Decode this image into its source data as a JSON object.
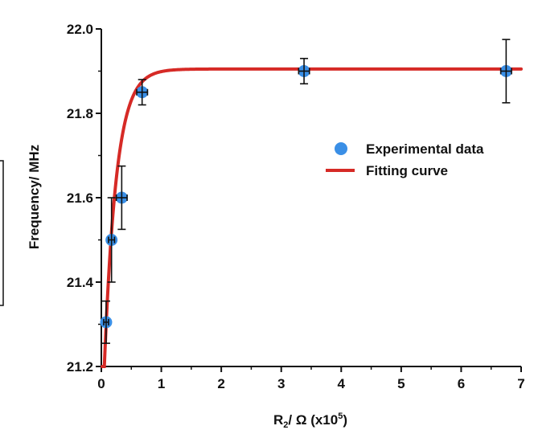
{
  "chart_data": {
    "type": "scatter",
    "title": "",
    "xlabel": {
      "main": "R",
      "sub": "2",
      "rest": "/ Ω (x10",
      "sup": "5",
      "close": ")"
    },
    "ylabel": "Frequency/ MHz",
    "xlim": [
      0,
      7
    ],
    "ylim": [
      21.2,
      22.0
    ],
    "x_ticks": [
      0,
      1,
      2,
      3,
      4,
      5,
      6,
      7
    ],
    "x_tick_labels": [
      "0",
      "1",
      "2",
      "3",
      "4",
      "5",
      "6",
      "7"
    ],
    "y_ticks": [
      21.2,
      21.4,
      21.6,
      21.8,
      22.0
    ],
    "y_tick_labels": [
      "21.2",
      "21.4",
      "21.6",
      "21.8",
      "22.0"
    ],
    "legend_position": "right",
    "series": [
      {
        "name": "Experimental data",
        "kind": "points",
        "color": "#3a8fe6",
        "points": [
          {
            "x": 0.08,
            "y": 21.305,
            "yerr": 0.05,
            "xerr": 0.04
          },
          {
            "x": 0.17,
            "y": 21.5,
            "yerr": 0.1,
            "xerr": 0.05
          },
          {
            "x": 0.34,
            "y": 21.6,
            "yerr": 0.075,
            "xerr": 0.09
          },
          {
            "x": 0.68,
            "y": 21.85,
            "yerr": 0.03,
            "xerr": 0.09
          },
          {
            "x": 3.38,
            "y": 21.9,
            "yerr": 0.03,
            "xerr": 0.09
          },
          {
            "x": 6.75,
            "y": 21.9,
            "yerr": 0.075,
            "xerr": 0.09
          }
        ]
      },
      {
        "name": "Fitting curve",
        "kind": "line",
        "color": "#d62a26",
        "curve": {
          "asymptote": 21.905,
          "drop": 0.905,
          "scale": 0.2,
          "x_start": 0.015,
          "x_end": 7.0
        }
      }
    ]
  }
}
